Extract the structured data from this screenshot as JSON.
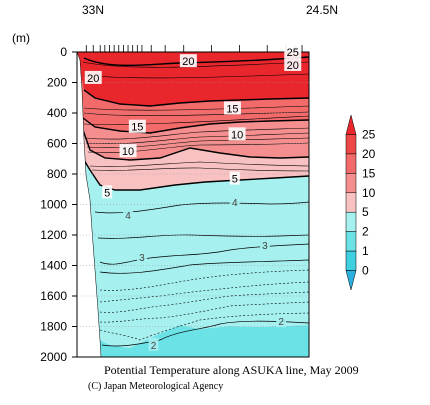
{
  "chart_data": {
    "type": "contour",
    "title": "Potential Temperature along ASUKA line, May 2009",
    "credit": "(C) Japan Meteorological Agency",
    "x_start_label": "33N",
    "x_end_label": "24.5N",
    "y_unit": "(m)",
    "y_ticks": [
      0,
      200,
      400,
      600,
      800,
      1000,
      1200,
      1400,
      1600,
      1800,
      2000
    ],
    "ylim": [
      0,
      2000
    ],
    "contour_levels": [
      25,
      20,
      15,
      10,
      5,
      4,
      3,
      2
    ],
    "contour_labels": [
      {
        "level": "25",
        "x": 0.93,
        "depth": 0
      },
      {
        "level": "20",
        "x": 0.07,
        "depth": 170
      },
      {
        "level": "20",
        "x": 0.48,
        "depth": 60
      },
      {
        "level": "20",
        "x": 0.93,
        "depth": 85
      },
      {
        "level": "15",
        "x": 0.67,
        "depth": 370
      },
      {
        "level": "15",
        "x": 0.26,
        "depth": 490
      },
      {
        "level": "10",
        "x": 0.69,
        "depth": 540
      },
      {
        "level": "10",
        "x": 0.22,
        "depth": 650
      },
      {
        "level": "5",
        "x": 0.13,
        "depth": 920
      },
      {
        "level": "5",
        "x": 0.68,
        "depth": 830
      },
      {
        "level": "4",
        "x": 0.22,
        "depth": 1070
      },
      {
        "level": "4",
        "x": 0.68,
        "depth": 985
      },
      {
        "level": "3",
        "x": 0.28,
        "depth": 1345
      },
      {
        "level": "3",
        "x": 0.81,
        "depth": 1265
      },
      {
        "level": "2",
        "x": 0.33,
        "depth": 1920
      },
      {
        "level": "2",
        "x": 0.88,
        "depth": 1765
      }
    ],
    "colorbar": {
      "levels": [
        "25",
        "20",
        "15",
        "10",
        "5",
        "2",
        "1",
        "0"
      ],
      "colors": [
        "#e8262b",
        "#ef4848",
        "#f26a6a",
        "#f58f8f",
        "#f9c2c2",
        "#a6f0f0",
        "#6be2e6",
        "#3ecfe1",
        "#2bb0df"
      ]
    }
  }
}
